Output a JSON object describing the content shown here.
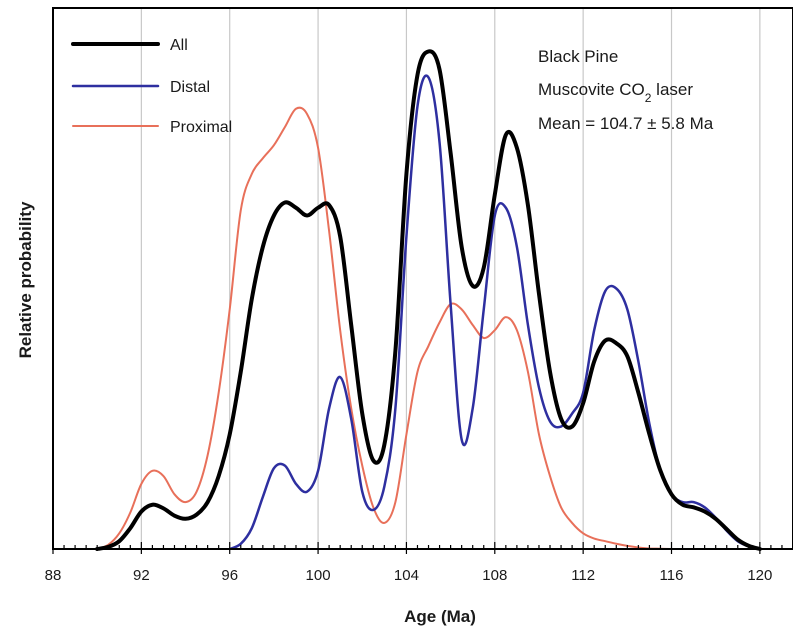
{
  "chart_data": {
    "type": "line",
    "xlabel": "Age (Ma)",
    "ylabel": "Relative probability",
    "xlim": [
      88,
      121.5
    ],
    "ylim": [
      0,
      1.0
    ],
    "x_ticks": [
      88,
      92,
      96,
      100,
      104,
      108,
      112,
      116,
      120
    ],
    "grid": "vertical",
    "legend_position": "top-left",
    "annotations": {
      "line1": "Black Pine",
      "line2_pre": "Muscovite CO",
      "line2_sub": "2",
      "line2_post": " laser",
      "line3": "Mean = 104.7 ± 5.8 Ma"
    },
    "series": [
      {
        "name": "All",
        "color": "#000000",
        "width": 4,
        "x": [
          90,
          90.5,
          91,
          91.5,
          92,
          92.5,
          93,
          93.5,
          94,
          94.5,
          95,
          95.5,
          96,
          96.5,
          97,
          97.5,
          98,
          98.5,
          99,
          99.5,
          100,
          100.5,
          101,
          101.5,
          102,
          102.5,
          103,
          103.5,
          104,
          104.5,
          105,
          105.5,
          106,
          106.5,
          107,
          107.5,
          108,
          108.5,
          109,
          109.5,
          110,
          110.5,
          111,
          111.5,
          112,
          112.5,
          113,
          113.5,
          114,
          114.5,
          115,
          115.5,
          116,
          116.5,
          117,
          117.5,
          118,
          118.5,
          119,
          119.5,
          120
        ],
        "y": [
          0,
          0.004,
          0.015,
          0.04,
          0.072,
          0.085,
          0.078,
          0.064,
          0.058,
          0.066,
          0.09,
          0.14,
          0.22,
          0.34,
          0.48,
          0.58,
          0.64,
          0.665,
          0.655,
          0.64,
          0.655,
          0.66,
          0.6,
          0.43,
          0.26,
          0.17,
          0.2,
          0.38,
          0.72,
          0.91,
          0.955,
          0.92,
          0.76,
          0.58,
          0.505,
          0.54,
          0.68,
          0.795,
          0.77,
          0.66,
          0.49,
          0.34,
          0.25,
          0.235,
          0.28,
          0.36,
          0.4,
          0.395,
          0.37,
          0.3,
          0.22,
          0.15,
          0.105,
          0.085,
          0.08,
          0.072,
          0.058,
          0.038,
          0.018,
          0.006,
          0
        ]
      },
      {
        "name": "Distal",
        "color": "#2e2fa0",
        "width": 2.5,
        "x": [
          96,
          96.5,
          97,
          97.5,
          98,
          98.5,
          99,
          99.5,
          100,
          100.5,
          101,
          101.5,
          102,
          102.5,
          103,
          103.5,
          104,
          104.5,
          105,
          105.5,
          106,
          106.5,
          107,
          107.5,
          108,
          108.5,
          109,
          109.5,
          110,
          110.5,
          111,
          111.5,
          112,
          112.5,
          113,
          113.5,
          114,
          114.5,
          115,
          115.5,
          116,
          116.5,
          117,
          117.5,
          118,
          118.5,
          119,
          119.5,
          120
        ],
        "y": [
          0,
          0.01,
          0.04,
          0.1,
          0.155,
          0.16,
          0.125,
          0.11,
          0.15,
          0.27,
          0.33,
          0.25,
          0.11,
          0.075,
          0.12,
          0.27,
          0.6,
          0.85,
          0.905,
          0.78,
          0.47,
          0.21,
          0.27,
          0.46,
          0.64,
          0.655,
          0.58,
          0.43,
          0.31,
          0.245,
          0.235,
          0.26,
          0.3,
          0.42,
          0.495,
          0.5,
          0.46,
          0.36,
          0.24,
          0.15,
          0.105,
          0.09,
          0.09,
          0.08,
          0.06,
          0.035,
          0.015,
          0.005,
          0
        ]
      },
      {
        "name": "Proximal",
        "color": "#e8705a",
        "width": 2,
        "x": [
          90,
          90.5,
          91,
          91.5,
          92,
          92.5,
          93,
          93.5,
          94,
          94.5,
          95,
          95.5,
          96,
          96.5,
          97,
          97.5,
          98,
          98.5,
          99,
          99.5,
          100,
          100.5,
          101,
          101.5,
          102,
          102.5,
          103,
          103.5,
          104,
          104.5,
          105,
          105.5,
          106,
          106.5,
          107,
          107.5,
          108,
          108.5,
          109,
          109.5,
          110,
          110.5,
          111,
          111.5,
          112,
          112.5,
          113,
          113.5,
          114,
          114.5,
          115,
          115.5,
          116
        ],
        "y": [
          0,
          0.008,
          0.03,
          0.07,
          0.125,
          0.15,
          0.14,
          0.105,
          0.09,
          0.11,
          0.18,
          0.3,
          0.46,
          0.65,
          0.72,
          0.75,
          0.775,
          0.81,
          0.845,
          0.835,
          0.77,
          0.61,
          0.42,
          0.27,
          0.16,
          0.08,
          0.05,
          0.09,
          0.22,
          0.34,
          0.39,
          0.435,
          0.47,
          0.46,
          0.43,
          0.405,
          0.42,
          0.445,
          0.42,
          0.34,
          0.22,
          0.14,
          0.08,
          0.05,
          0.03,
          0.02,
          0.015,
          0.01,
          0.006,
          0.003,
          0.001,
          0.0005,
          0
        ]
      }
    ]
  }
}
